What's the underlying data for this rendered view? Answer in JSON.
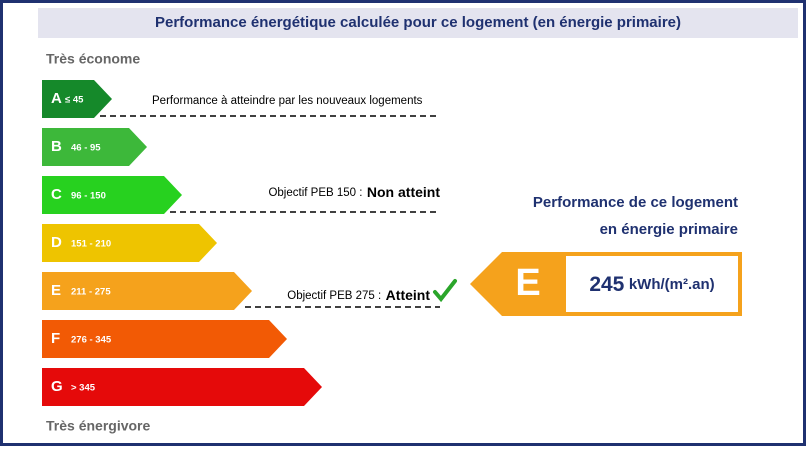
{
  "header": {
    "title": "Performance énergétique calculée pour ce logement (en énergie primaire)"
  },
  "scale": {
    "top_label": "Très économe",
    "bottom_label": "Très énergivore",
    "classes": [
      {
        "letter": "A",
        "range": "≤ 45",
        "color": "#15892a"
      },
      {
        "letter": "B",
        "range": "46 - 95",
        "color": "#3db83a"
      },
      {
        "letter": "C",
        "range": "96 - 150",
        "color": "#27d11f"
      },
      {
        "letter": "D",
        "range": "151 - 210",
        "color": "#eec400"
      },
      {
        "letter": "E",
        "range": "211 - 275",
        "color": "#f5a21c"
      },
      {
        "letter": "F",
        "range": "276 - 345",
        "color": "#f25a05"
      },
      {
        "letter": "G",
        "range": "> 345",
        "color": "#e50a0a"
      }
    ]
  },
  "notes": {
    "new_buildings": "Performance à atteindre par les nouveaux logements",
    "peb150": {
      "prefix": "Objectif PEB 150 :",
      "status": "Non atteint"
    },
    "peb275": {
      "prefix": "Objectif PEB 275 :",
      "status": "Atteint"
    }
  },
  "result": {
    "title_line1": "Performance de ce logement",
    "title_line2": "en énergie primaire",
    "class": "E",
    "value": "245",
    "unit": "kWh/(m².an)"
  }
}
